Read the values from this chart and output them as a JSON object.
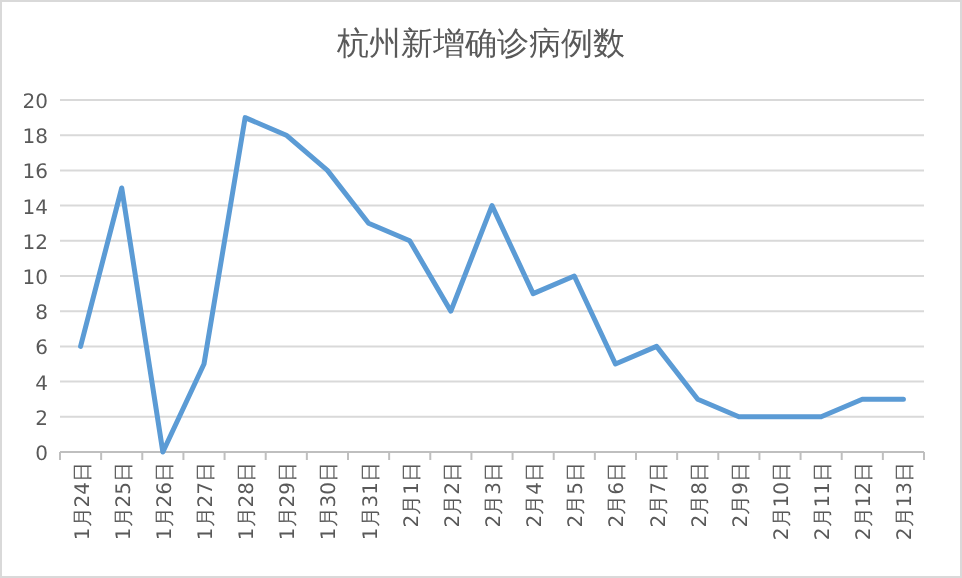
{
  "chart_data": {
    "type": "line",
    "title": "杭州新增确诊病例数",
    "categories": [
      "1月24日",
      "1月25日",
      "1月26日",
      "1月27日",
      "1月28日",
      "1月29日",
      "1月30日",
      "1月31日",
      "2月1日",
      "2月2日",
      "2月3日",
      "2月4日",
      "2月5日",
      "2月6日",
      "2月7日",
      "2月8日",
      "2月9日",
      "2月10日",
      "2月11日",
      "2月12日",
      "2月13日"
    ],
    "series": [
      {
        "color": "#5b9bd5",
        "values": [
          6,
          15,
          0,
          5,
          19,
          18,
          16,
          13,
          12,
          8,
          14,
          9,
          10,
          5,
          6,
          3,
          2,
          2,
          2,
          3,
          3
        ]
      }
    ],
    "ylim": [
      0,
      20
    ],
    "yticks": [
      0,
      2,
      4,
      6,
      8,
      10,
      12,
      14,
      16,
      18,
      20
    ],
    "grid": "y",
    "marker": "none",
    "line_style": "solid"
  }
}
